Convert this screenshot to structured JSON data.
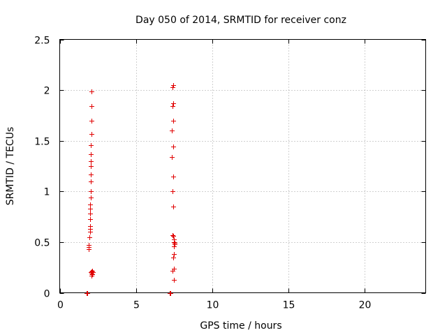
{
  "chart_data": {
    "type": "scatter",
    "title": "Day 050 of 2014, SRMTID for receiver conz",
    "xlabel": "GPS time / hours",
    "ylabel": "SRMTID / TECUs",
    "xlim": [
      0,
      24
    ],
    "ylim": [
      0,
      2.5
    ],
    "x_ticks": [
      0,
      5,
      10,
      15,
      20
    ],
    "x_tick_labels": [
      "0",
      "5",
      "10",
      "15",
      "20"
    ],
    "y_ticks": [
      0,
      0.5,
      1,
      1.5,
      2,
      2.5
    ],
    "y_tick_labels": [
      "0",
      "0.5",
      "1",
      "1.5",
      "2",
      "2.5"
    ],
    "grid": true,
    "marker": "plus",
    "series": [
      {
        "name": "SRMTID",
        "color": "#e00000",
        "points": [
          [
            1.75,
            0.0
          ],
          [
            1.8,
            0.0
          ],
          [
            7.2,
            0.0
          ],
          [
            7.25,
            0.0
          ],
          [
            1.9,
            0.43
          ],
          [
            1.9,
            0.45
          ],
          [
            1.92,
            0.47
          ],
          [
            1.95,
            0.55
          ],
          [
            1.97,
            0.6
          ],
          [
            1.98,
            0.63
          ],
          [
            2.0,
            0.66
          ],
          [
            2.0,
            0.73
          ],
          [
            2.0,
            0.78
          ],
          [
            2.0,
            0.83
          ],
          [
            2.0,
            0.87
          ],
          [
            2.02,
            0.94
          ],
          [
            2.02,
            1.0
          ],
          [
            2.02,
            1.1
          ],
          [
            2.02,
            1.17
          ],
          [
            2.04,
            1.25
          ],
          [
            2.05,
            1.3
          ],
          [
            2.05,
            1.37
          ],
          [
            2.05,
            1.46
          ],
          [
            2.07,
            1.57
          ],
          [
            2.07,
            1.7
          ],
          [
            2.1,
            1.84
          ],
          [
            2.1,
            1.99
          ],
          [
            2.03,
            0.2
          ],
          [
            2.07,
            0.21
          ],
          [
            2.1,
            0.19
          ],
          [
            2.12,
            0.22
          ],
          [
            2.15,
            0.18
          ],
          [
            2.08,
            0.17
          ],
          [
            2.18,
            0.2
          ],
          [
            7.4,
            2.03
          ],
          [
            7.45,
            2.05
          ],
          [
            7.4,
            1.84
          ],
          [
            7.42,
            1.87
          ],
          [
            7.43,
            1.7
          ],
          [
            7.35,
            1.6
          ],
          [
            7.42,
            1.44
          ],
          [
            7.35,
            1.34
          ],
          [
            7.45,
            1.15
          ],
          [
            7.38,
            1.0
          ],
          [
            7.45,
            0.85
          ],
          [
            7.4,
            0.57
          ],
          [
            7.45,
            0.56
          ],
          [
            7.48,
            0.53
          ],
          [
            7.5,
            0.5
          ],
          [
            7.52,
            0.48
          ],
          [
            7.48,
            0.46
          ],
          [
            7.55,
            0.49
          ],
          [
            7.5,
            0.38
          ],
          [
            7.45,
            0.35
          ],
          [
            7.5,
            0.24
          ],
          [
            7.4,
            0.22
          ],
          [
            7.48,
            0.13
          ]
        ]
      }
    ]
  }
}
